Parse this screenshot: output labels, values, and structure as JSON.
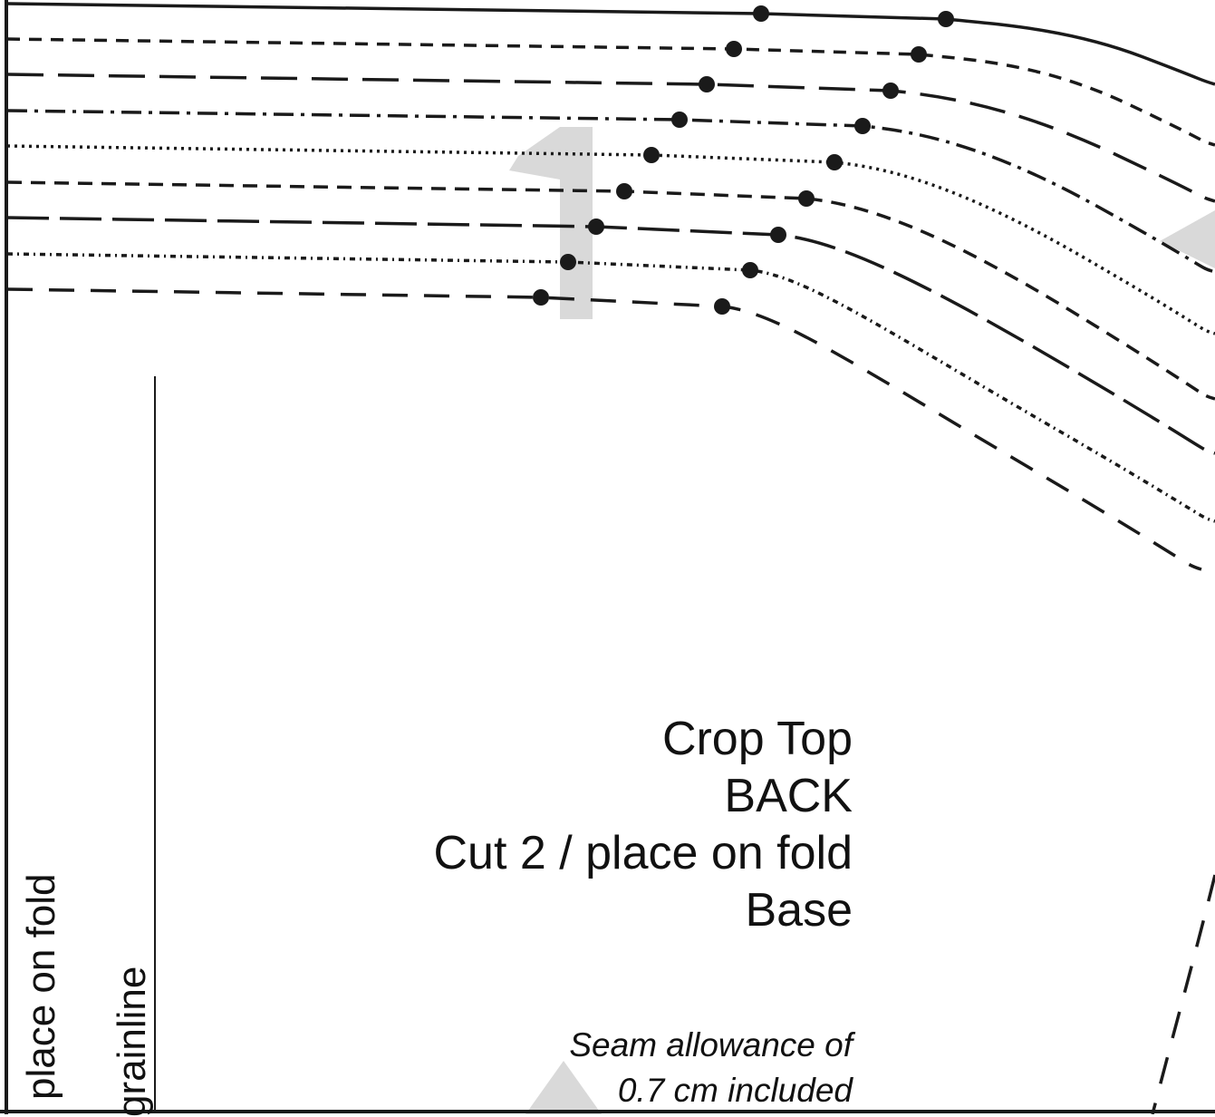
{
  "page": {
    "background": "#ffffff",
    "line_color": "#1a1a1a",
    "watermark_color": "#d9d9d9"
  },
  "piece_label": {
    "line1": "Crop Top",
    "line2": "BACK",
    "line3": "Cut 2 / place on fold",
    "line4": "Base"
  },
  "seam_note": {
    "line1": "Seam allowance of",
    "line2": "0.7 cm included"
  },
  "fold_label": "place on fold",
  "grainline_label": "grainline",
  "watermark": {
    "digit": "1",
    "notch_icons": [
      "triangle-notch-icon",
      "triangle-notch-icon"
    ]
  },
  "size_lines": [
    {
      "style": "solid"
    },
    {
      "style": "short-dash"
    },
    {
      "style": "long-dash"
    },
    {
      "style": "dash-dot"
    },
    {
      "style": "dotted"
    },
    {
      "style": "medium-dash"
    },
    {
      "style": "long-short-dash"
    },
    {
      "style": "dense-dot"
    },
    {
      "style": "dash"
    }
  ]
}
